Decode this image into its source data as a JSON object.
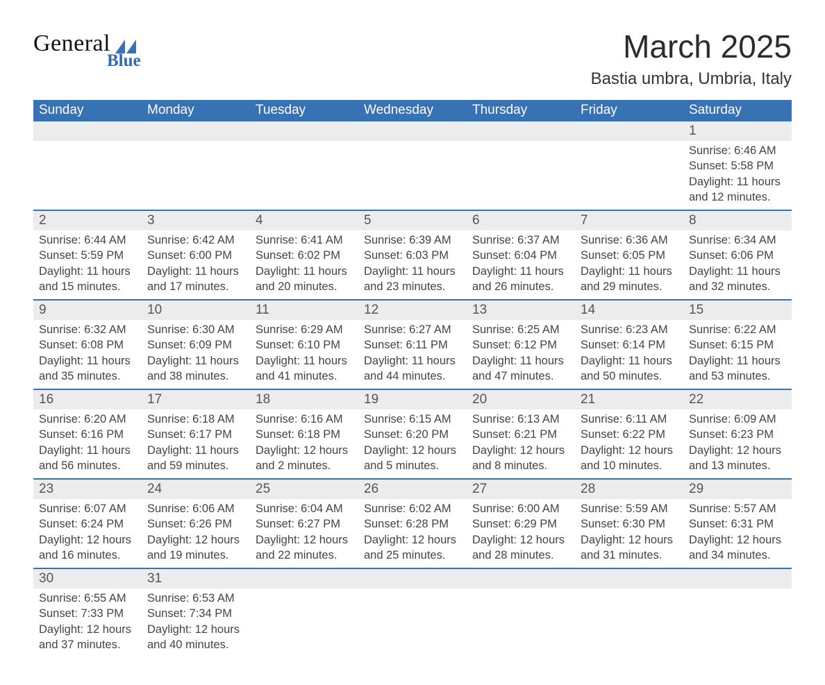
{
  "logo": {
    "text_main": "General",
    "text_sub": "Blue",
    "shape_color": "#3772b5"
  },
  "title": "March 2025",
  "location": "Bastia umbra, Umbria, Italy",
  "colors": {
    "header_bg": "#3772b5",
    "header_text": "#ffffff",
    "daynum_bg": "#ececec",
    "row_border": "#3772b5",
    "body_text": "#444444",
    "title_text": "#2c2c2c"
  },
  "weekdays": [
    "Sunday",
    "Monday",
    "Tuesday",
    "Wednesday",
    "Thursday",
    "Friday",
    "Saturday"
  ],
  "weeks": [
    {
      "nums": [
        "",
        "",
        "",
        "",
        "",
        "",
        "1"
      ],
      "cells": [
        "",
        "",
        "",
        "",
        "",
        "",
        "Sunrise: 6:46 AM\nSunset: 5:58 PM\nDaylight: 11 hours and 12 minutes."
      ]
    },
    {
      "nums": [
        "2",
        "3",
        "4",
        "5",
        "6",
        "7",
        "8"
      ],
      "cells": [
        "Sunrise: 6:44 AM\nSunset: 5:59 PM\nDaylight: 11 hours and 15 minutes.",
        "Sunrise: 6:42 AM\nSunset: 6:00 PM\nDaylight: 11 hours and 17 minutes.",
        "Sunrise: 6:41 AM\nSunset: 6:02 PM\nDaylight: 11 hours and 20 minutes.",
        "Sunrise: 6:39 AM\nSunset: 6:03 PM\nDaylight: 11 hours and 23 minutes.",
        "Sunrise: 6:37 AM\nSunset: 6:04 PM\nDaylight: 11 hours and 26 minutes.",
        "Sunrise: 6:36 AM\nSunset: 6:05 PM\nDaylight: 11 hours and 29 minutes.",
        "Sunrise: 6:34 AM\nSunset: 6:06 PM\nDaylight: 11 hours and 32 minutes."
      ]
    },
    {
      "nums": [
        "9",
        "10",
        "11",
        "12",
        "13",
        "14",
        "15"
      ],
      "cells": [
        "Sunrise: 6:32 AM\nSunset: 6:08 PM\nDaylight: 11 hours and 35 minutes.",
        "Sunrise: 6:30 AM\nSunset: 6:09 PM\nDaylight: 11 hours and 38 minutes.",
        "Sunrise: 6:29 AM\nSunset: 6:10 PM\nDaylight: 11 hours and 41 minutes.",
        "Sunrise: 6:27 AM\nSunset: 6:11 PM\nDaylight: 11 hours and 44 minutes.",
        "Sunrise: 6:25 AM\nSunset: 6:12 PM\nDaylight: 11 hours and 47 minutes.",
        "Sunrise: 6:23 AM\nSunset: 6:14 PM\nDaylight: 11 hours and 50 minutes.",
        "Sunrise: 6:22 AM\nSunset: 6:15 PM\nDaylight: 11 hours and 53 minutes."
      ]
    },
    {
      "nums": [
        "16",
        "17",
        "18",
        "19",
        "20",
        "21",
        "22"
      ],
      "cells": [
        "Sunrise: 6:20 AM\nSunset: 6:16 PM\nDaylight: 11 hours and 56 minutes.",
        "Sunrise: 6:18 AM\nSunset: 6:17 PM\nDaylight: 11 hours and 59 minutes.",
        "Sunrise: 6:16 AM\nSunset: 6:18 PM\nDaylight: 12 hours and 2 minutes.",
        "Sunrise: 6:15 AM\nSunset: 6:20 PM\nDaylight: 12 hours and 5 minutes.",
        "Sunrise: 6:13 AM\nSunset: 6:21 PM\nDaylight: 12 hours and 8 minutes.",
        "Sunrise: 6:11 AM\nSunset: 6:22 PM\nDaylight: 12 hours and 10 minutes.",
        "Sunrise: 6:09 AM\nSunset: 6:23 PM\nDaylight: 12 hours and 13 minutes."
      ]
    },
    {
      "nums": [
        "23",
        "24",
        "25",
        "26",
        "27",
        "28",
        "29"
      ],
      "cells": [
        "Sunrise: 6:07 AM\nSunset: 6:24 PM\nDaylight: 12 hours and 16 minutes.",
        "Sunrise: 6:06 AM\nSunset: 6:26 PM\nDaylight: 12 hours and 19 minutes.",
        "Sunrise: 6:04 AM\nSunset: 6:27 PM\nDaylight: 12 hours and 22 minutes.",
        "Sunrise: 6:02 AM\nSunset: 6:28 PM\nDaylight: 12 hours and 25 minutes.",
        "Sunrise: 6:00 AM\nSunset: 6:29 PM\nDaylight: 12 hours and 28 minutes.",
        "Sunrise: 5:59 AM\nSunset: 6:30 PM\nDaylight: 12 hours and 31 minutes.",
        "Sunrise: 5:57 AM\nSunset: 6:31 PM\nDaylight: 12 hours and 34 minutes."
      ]
    },
    {
      "nums": [
        "30",
        "31",
        "",
        "",
        "",
        "",
        ""
      ],
      "cells": [
        "Sunrise: 6:55 AM\nSunset: 7:33 PM\nDaylight: 12 hours and 37 minutes.",
        "Sunrise: 6:53 AM\nSunset: 7:34 PM\nDaylight: 12 hours and 40 minutes.",
        "",
        "",
        "",
        "",
        ""
      ]
    }
  ]
}
